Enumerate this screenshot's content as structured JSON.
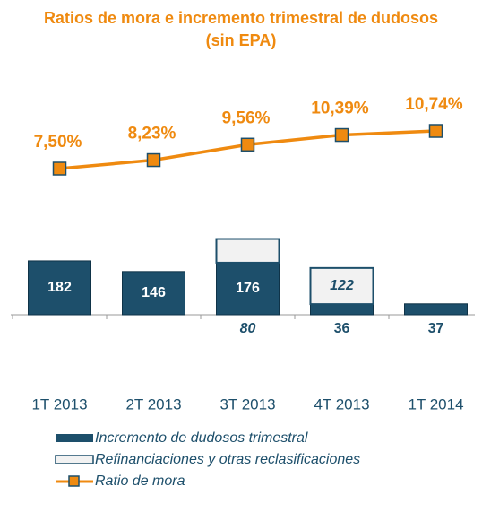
{
  "chart_data": {
    "type": "bar-line",
    "title": "Ratios de mora e incremento trimestral de dudosos (sin EPA)",
    "categories": [
      "1T 2013",
      "2T 2013",
      "3T 2013",
      "4T 2013",
      "1T 2014"
    ],
    "series": [
      {
        "name": "Incremento de dudosos trimestral",
        "type": "bar",
        "color": "#1d4f6b",
        "values": [
          182,
          146,
          176,
          36,
          37
        ]
      },
      {
        "name": "Refinanciaciones y otras reclasificaciones",
        "type": "bar",
        "color": "#f2f2f2",
        "values": [
          null,
          null,
          80,
          122,
          null
        ]
      },
      {
        "name": "Ratio de mora",
        "type": "line",
        "color": "#ef8a10",
        "values": [
          7.5,
          8.23,
          9.56,
          10.39,
          10.74
        ],
        "value_labels": [
          "7,50%",
          "8,23%",
          "9,56%",
          "10,39%",
          "10,74%"
        ]
      }
    ]
  }
}
